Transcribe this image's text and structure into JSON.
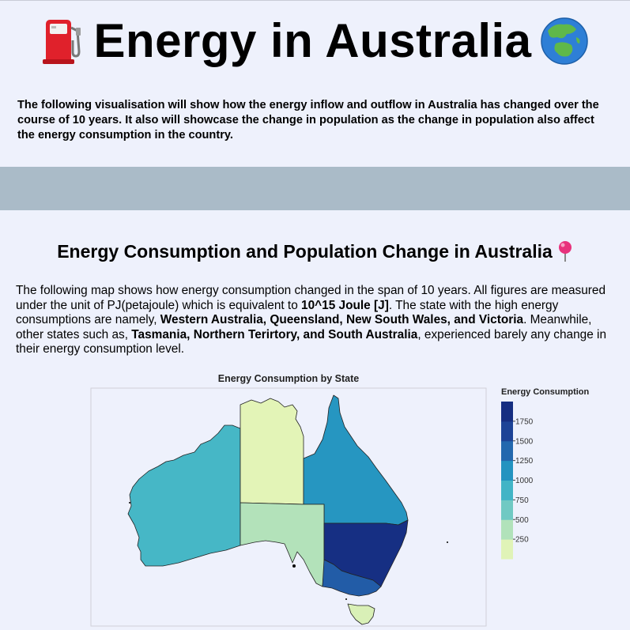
{
  "header": {
    "title": "Energy in Australia",
    "left_icon": "fuel-pump-icon",
    "right_icon": "globe-asia-australia-icon",
    "intro": "The following visualisation will show how the energy inflow and outflow in Australia has changed over the course of 10 years. It also will showcase the change in population as the change in population also affect the energy consumption in the country."
  },
  "section": {
    "title": "Energy Consumption and Population Change in Australia",
    "title_icon": "round-pushpin-icon",
    "desc_parts": [
      {
        "text": "The following map shows how energy consumption changed in the span of 10 years. All figures are measured under the unit of PJ(petajoule) which is equivalent to ",
        "bold": false
      },
      {
        "text": "10^15 Joule [J]",
        "bold": true
      },
      {
        "text": ". The state with the high energy consumptions are namely, ",
        "bold": false
      },
      {
        "text": "Western Australia, Queensland, New South Wales, and Victoria",
        "bold": true
      },
      {
        "text": ". Meanwhile, other states such as, ",
        "bold": false
      },
      {
        "text": "Tasmania, Northern Terirtory, and South Australia",
        "bold": true
      },
      {
        "text": ", experienced barely any change in their energy consumption level.",
        "bold": false
      }
    ]
  },
  "chart_data": {
    "type": "choropleth",
    "title": "Energy Consumption by State",
    "legend_title": "Energy Consumption",
    "color_scale": "YlGnBu",
    "range": [
      0,
      2000
    ],
    "legend_ticks": [
      250,
      500,
      750,
      1000,
      1250,
      1500,
      1750
    ],
    "regions": [
      {
        "name": "Western Australia",
        "value": 850
      },
      {
        "name": "Northern Territory",
        "value": 100
      },
      {
        "name": "South Australia",
        "value": 370
      },
      {
        "name": "Queensland",
        "value": 1100
      },
      {
        "name": "New South Wales",
        "value": 1850
      },
      {
        "name": "Victoria",
        "value": 1450
      },
      {
        "name": "Tasmania",
        "value": 180
      }
    ]
  }
}
